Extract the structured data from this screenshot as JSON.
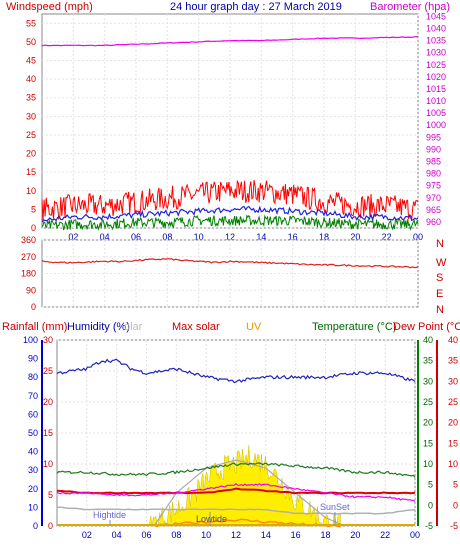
{
  "header": {
    "title": "24 hour graph day : 27 March 2019",
    "left_label": "Windspeed (mph)",
    "right_label": "Barometer (hpa)"
  },
  "direction_labels": [
    "N",
    "W",
    "S",
    "E",
    "N"
  ],
  "bottom_header": {
    "rainfall": "Rainfall (mm)",
    "humidity": "Humidity (%)",
    "solar_faded": "olar",
    "max_solar": "Max solar",
    "uv": "UV",
    "temperature": "Temperature (°C)",
    "dewpoint": "Dew Point (°C)"
  },
  "annotations": {
    "hightide": "Hightide",
    "lowtide": "Lowtide",
    "sunset": "SunSet"
  },
  "colors": {
    "windspeed": "#ff0000",
    "wind_avg": "#2222dd",
    "wind_low": "#008000",
    "barometer": "#ee00ee",
    "direction": "#dd2222",
    "humidity": "#2222bb",
    "temperature": "#1e7a1e",
    "dewpoint": "#dd0000",
    "rainfall": "#0000cc",
    "solar": "#ffee00",
    "max_solar": "#aaaaaa",
    "uv": "#ff8800",
    "magenta": "#ee00ee"
  },
  "chart_data": [
    {
      "type": "line",
      "title": "24 hour graph day : 27 March 2019",
      "x_ticks": [
        "02",
        "04",
        "06",
        "08",
        "10",
        "12",
        "14",
        "16",
        "18",
        "20",
        "22",
        "00"
      ],
      "xlim": [
        0,
        24
      ],
      "left_axis": {
        "label": "Windspeed (mph)",
        "ticks": [
          0,
          5,
          10,
          15,
          20,
          25,
          30,
          35,
          40,
          45,
          50,
          55
        ],
        "ylim": [
          0,
          57.5
        ]
      },
      "right_axis": {
        "label": "Barometer (hpa)",
        "ticks": [
          960,
          965,
          970,
          975,
          980,
          985,
          990,
          995,
          1000,
          1005,
          1010,
          1015,
          1020,
          1025,
          1030,
          1035,
          1040,
          1045
        ],
        "ylim": [
          957.5,
          1046
        ]
      },
      "series": [
        {
          "name": "Windspeed (mph)",
          "axis": "left",
          "x": [
            0,
            2,
            4,
            6,
            8,
            10,
            12,
            14,
            16,
            18,
            20,
            22,
            24
          ],
          "values": [
            5,
            6,
            6,
            7,
            8,
            9,
            10,
            10,
            9,
            7,
            6,
            6,
            5
          ]
        },
        {
          "axis": "left",
          "x": [
            0,
            2,
            4,
            6,
            8,
            10,
            12,
            14,
            16,
            18,
            20,
            22,
            24
          ],
          "values": [
            2,
            3,
            3,
            3.5,
            4,
            4.5,
            5,
            5,
            4.5,
            4,
            3,
            3,
            2.5
          ]
        },
        {
          "axis": "left",
          "x": [
            0,
            2,
            4,
            6,
            8,
            10,
            12,
            14,
            16,
            18,
            20,
            22,
            24
          ],
          "values": [
            0.5,
            1,
            1,
            1.5,
            1.5,
            2,
            2,
            2,
            2,
            1.5,
            1,
            1,
            1
          ]
        },
        {
          "name": "Barometer (hpa)",
          "axis": "right",
          "x": [
            0,
            2,
            4,
            6,
            8,
            10,
            12,
            14,
            16,
            18,
            20,
            22,
            24
          ],
          "values": [
            1033,
            1033,
            1033,
            1033.5,
            1034,
            1034.5,
            1035,
            1035,
            1035.5,
            1036,
            1036,
            1036.3,
            1036.5
          ]
        }
      ]
    },
    {
      "type": "line",
      "x_ticks": [
        "02",
        "04",
        "06",
        "08",
        "10",
        "12",
        "14",
        "16",
        "18",
        "20",
        "22",
        "00"
      ],
      "xlim": [
        0,
        24
      ],
      "left_axis": {
        "ticks": [
          0,
          90,
          180,
          270,
          360
        ],
        "ylim": [
          0,
          360
        ]
      },
      "right_axis_labels": [
        "N",
        "W",
        "S",
        "E",
        "N"
      ],
      "series": [
        {
          "axis": "left",
          "x": [
            0,
            1,
            2,
            3,
            4,
            5,
            6,
            7,
            8,
            9,
            10,
            11,
            12,
            13,
            14,
            15,
            16,
            17,
            18,
            19,
            20,
            21,
            22,
            23,
            24
          ],
          "values": [
            245,
            240,
            238,
            242,
            246,
            244,
            250,
            255,
            258,
            250,
            245,
            240,
            245,
            243,
            238,
            236,
            232,
            228,
            226,
            225,
            222,
            220,
            218,
            216,
            214
          ]
        }
      ]
    },
    {
      "type": "line",
      "x_ticks": [
        "02",
        "04",
        "06",
        "08",
        "10",
        "12",
        "14",
        "16",
        "18",
        "20",
        "22",
        "00"
      ],
      "xlim": [
        0,
        24
      ],
      "axes": {
        "rainfall": {
          "label": "Rainfall (mm)",
          "ticks": [
            0,
            10,
            20,
            30,
            40,
            50,
            60,
            70,
            80,
            90,
            100
          ],
          "ylim": [
            0,
            100
          ]
        },
        "humidity": {
          "label": "Humidity (%)",
          "ticks": [
            0,
            5,
            10,
            15,
            20,
            25,
            30
          ],
          "ylim": [
            0,
            30
          ]
        },
        "temperature": {
          "label": "Temperature (°C)",
          "ticks": [
            -5,
            0,
            5,
            10,
            15,
            20,
            25,
            30,
            35,
            40
          ],
          "ylim": [
            -5,
            40
          ]
        },
        "dewpoint": {
          "label": "Dew Point (°C)",
          "ticks": [
            -5,
            0,
            5,
            10,
            15,
            20,
            25,
            30,
            35,
            40
          ],
          "ylim": [
            -5,
            40
          ]
        }
      },
      "series": [
        {
          "name": "Humidity (%)",
          "axis": "temperature",
          "x": [
            0,
            2,
            3,
            4,
            5,
            6,
            8,
            10,
            12,
            14,
            16,
            18,
            20,
            22,
            24
          ],
          "values": [
            32,
            33,
            35,
            35,
            33,
            32,
            33,
            31,
            30,
            31,
            31,
            31,
            32,
            32,
            30
          ]
        },
        {
          "axis": "temperature",
          "x": [
            0,
            2,
            4,
            6,
            8,
            10,
            12,
            14,
            16,
            18,
            20,
            22,
            24
          ],
          "values": [
            3.5,
            3,
            3,
            3,
            3,
            3,
            4,
            3.5,
            3,
            3,
            3,
            3,
            3
          ]
        },
        {
          "axis": "temperature",
          "x": [
            0,
            2,
            4,
            6,
            8,
            10,
            12,
            14,
            16,
            18,
            20,
            22,
            24
          ],
          "values": [
            -0.5,
            -1,
            -1,
            -1,
            -1,
            -1,
            -1,
            -1,
            -2,
            -2,
            -2,
            -2,
            -1
          ]
        },
        {
          "name": "Temperature (°C)",
          "axis": "temperature",
          "x": [
            0,
            2,
            4,
            6,
            8,
            10,
            12,
            14,
            16,
            18,
            20,
            22,
            24
          ],
          "values": [
            8,
            8,
            7.5,
            7.5,
            8,
            9,
            10,
            10,
            9.5,
            9,
            8,
            8,
            7
          ]
        },
        {
          "name": "Dew Point (°C)",
          "axis": "temperature",
          "x": [
            0,
            2,
            4,
            6,
            8,
            10,
            12,
            14,
            16,
            18,
            20,
            22,
            24
          ],
          "values": [
            3,
            3,
            2.5,
            2.5,
            3,
            4,
            5,
            5,
            4,
            3,
            2,
            2,
            1
          ]
        },
        {
          "name": "Max solar",
          "axis": "temperature",
          "x": [
            6.5,
            8,
            10,
            12,
            14,
            16,
            18,
            19.3
          ],
          "values": [
            -5,
            3,
            9,
            11,
            9,
            3,
            -3,
            -5
          ]
        },
        {
          "axis": "temperature",
          "x": [
            6.2,
            7,
            8,
            9,
            10,
            11,
            12,
            13,
            14,
            15,
            16,
            17,
            18,
            19
          ],
          "values": [
            -5,
            -3,
            -1,
            2,
            6,
            9,
            10,
            12,
            10,
            6,
            1,
            -1,
            -4,
            -5
          ]
        },
        {
          "name": "UV",
          "axis": "temperature",
          "x": [
            6.5,
            8,
            10,
            12,
            14,
            16,
            18,
            19
          ],
          "values": [
            -5,
            -4.5,
            -4,
            -3.5,
            -4,
            -4.5,
            -5,
            -5
          ]
        }
      ]
    }
  ]
}
